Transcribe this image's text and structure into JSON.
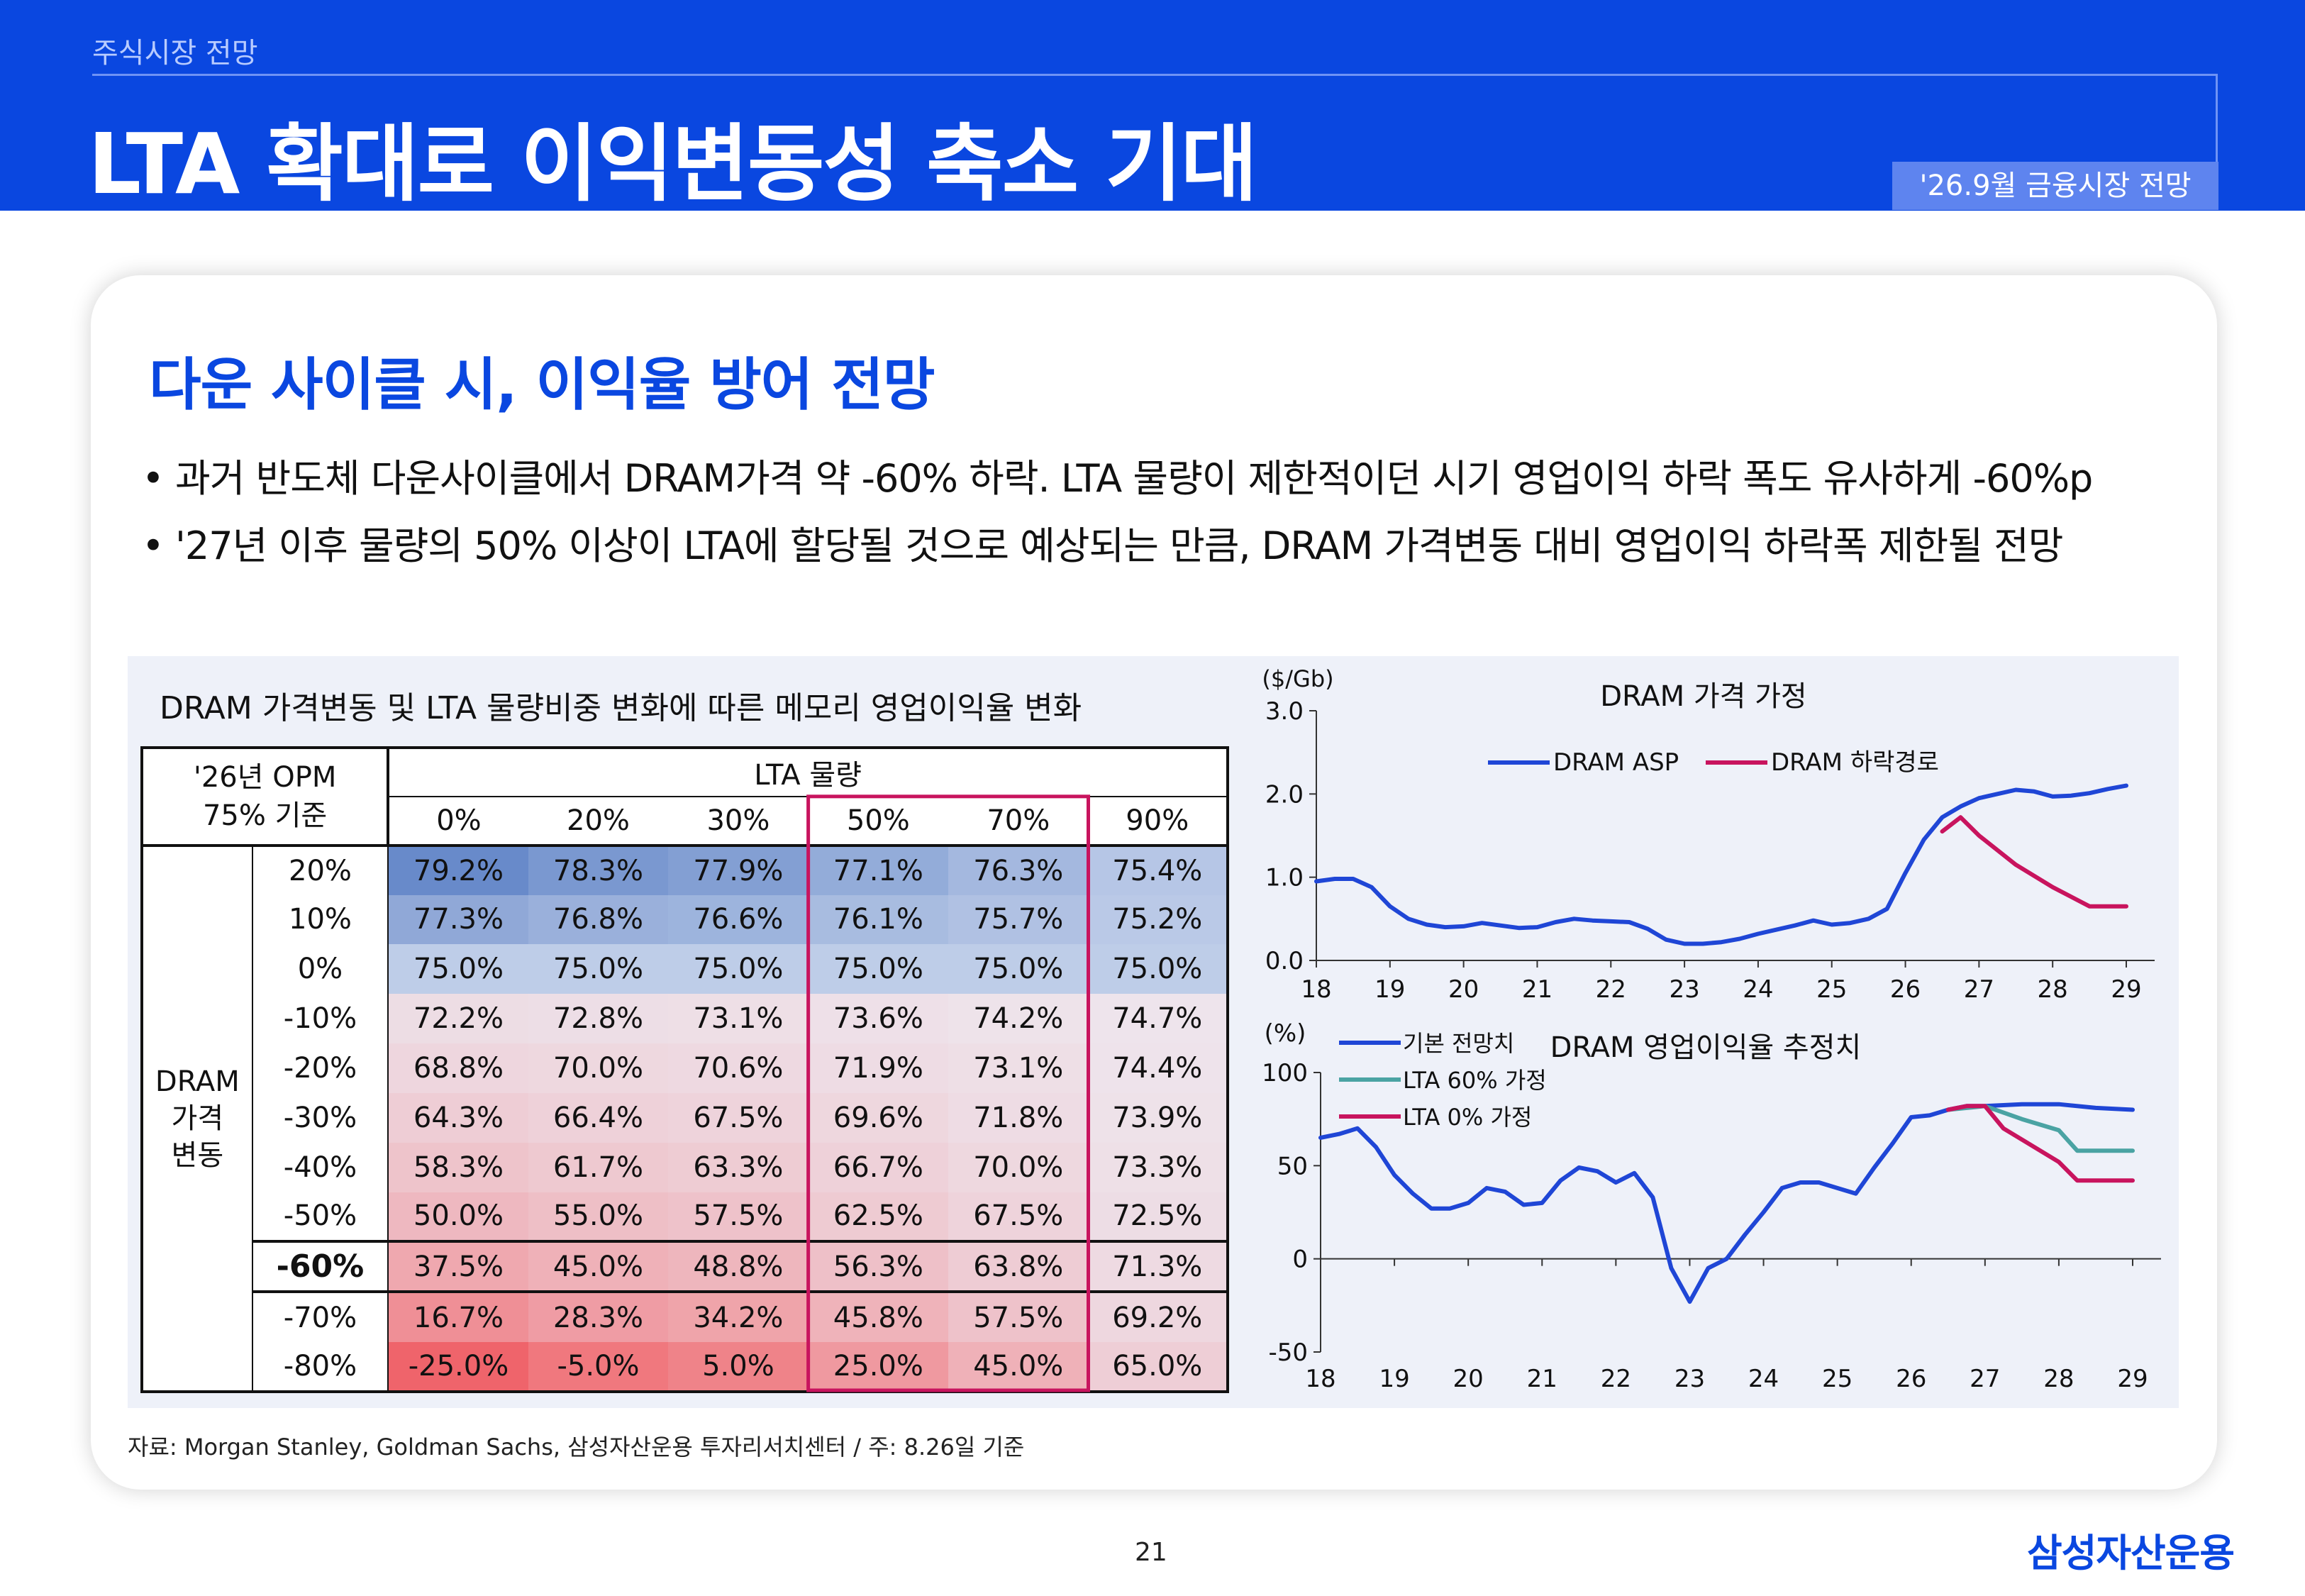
{
  "header": {
    "subtitle": "주식시장 전망",
    "title": "LTA 확대로 이익변동성 축소 기대",
    "badge": "'26.9월 금융시장 전망"
  },
  "section": {
    "title": "다운 사이클 시, 이익율 방어 전망",
    "bullets": [
      "• 과거 반도체 다운사이클에서 DRAM가격 약 -60% 하락. LTA 물량이 제한적이던 시기 영업이익 하락 폭도 유사하게 -60%p",
      "• '27년 이후 물량의 50% 이상이 LTA에 할당될 것으로 예상되는 만큼, DRAM 가격변동 대비 영업이익 하락폭 제한될 전망"
    ]
  },
  "colors": {
    "brand": "#0a47e0",
    "highlight_box": "#c8145e",
    "asp_line": "#1f46d6",
    "decline_line": "#c8145e",
    "lta60_line": "#4aa3a3"
  },
  "table": {
    "title": "DRAM 가격변동 및 LTA 물량비중 변화에 따른 메모리 영업이익율 변화",
    "corner_line1": "'26년 OPM",
    "corner_line2": "75% 기준",
    "col_group": "LTA 물량",
    "row_group": [
      "DRAM",
      "가격",
      "변동"
    ],
    "columns": [
      "0%",
      "20%",
      "30%",
      "50%",
      "70%",
      "90%"
    ],
    "rows": [
      {
        "label": "20%",
        "values": [
          "79.2%",
          "78.3%",
          "77.9%",
          "77.1%",
          "76.3%",
          "75.4%"
        ]
      },
      {
        "label": "10%",
        "values": [
          "77.3%",
          "76.8%",
          "76.6%",
          "76.1%",
          "75.7%",
          "75.2%"
        ]
      },
      {
        "label": "0%",
        "values": [
          "75.0%",
          "75.0%",
          "75.0%",
          "75.0%",
          "75.0%",
          "75.0%"
        ]
      },
      {
        "label": "-10%",
        "values": [
          "72.2%",
          "72.8%",
          "73.1%",
          "73.6%",
          "74.2%",
          "74.7%"
        ]
      },
      {
        "label": "-20%",
        "values": [
          "68.8%",
          "70.0%",
          "70.6%",
          "71.9%",
          "73.1%",
          "74.4%"
        ]
      },
      {
        "label": "-30%",
        "values": [
          "64.3%",
          "66.4%",
          "67.5%",
          "69.6%",
          "71.8%",
          "73.9%"
        ]
      },
      {
        "label": "-40%",
        "values": [
          "58.3%",
          "61.7%",
          "63.3%",
          "66.7%",
          "70.0%",
          "73.3%"
        ]
      },
      {
        "label": "-50%",
        "values": [
          "50.0%",
          "55.0%",
          "57.5%",
          "62.5%",
          "67.5%",
          "72.5%"
        ]
      },
      {
        "label": "-60%",
        "values": [
          "37.5%",
          "45.0%",
          "48.8%",
          "56.3%",
          "63.8%",
          "71.3%"
        ]
      },
      {
        "label": "-70%",
        "values": [
          "16.7%",
          "28.3%",
          "34.2%",
          "45.8%",
          "57.5%",
          "69.2%"
        ]
      },
      {
        "label": "-80%",
        "values": [
          "-25.0%",
          "-5.0%",
          "5.0%",
          "25.0%",
          "45.0%",
          "65.0%"
        ]
      }
    ]
  },
  "chart_data": [
    {
      "type": "heatmap",
      "title": "DRAM 가격변동 및 LTA 물량비중 변화에 따른 메모리 영업이익율 변화",
      "x_label": "LTA 물량",
      "y_label": "DRAM 가격 변동",
      "x": [
        "0%",
        "20%",
        "30%",
        "50%",
        "70%",
        "90%"
      ],
      "y": [
        "20%",
        "10%",
        "0%",
        "-10%",
        "-20%",
        "-30%",
        "-40%",
        "-50%",
        "-60%",
        "-70%",
        "-80%"
      ],
      "values": [
        [
          79.2,
          78.3,
          77.9,
          77.1,
          76.3,
          75.4
        ],
        [
          77.3,
          76.8,
          76.6,
          76.1,
          75.7,
          75.2
        ],
        [
          75.0,
          75.0,
          75.0,
          75.0,
          75.0,
          75.0
        ],
        [
          72.2,
          72.8,
          73.1,
          73.6,
          74.2,
          74.7
        ],
        [
          68.8,
          70.0,
          70.6,
          71.9,
          73.1,
          74.4
        ],
        [
          64.3,
          66.4,
          67.5,
          69.6,
          71.8,
          73.9
        ],
        [
          58.3,
          61.7,
          63.3,
          66.7,
          70.0,
          73.3
        ],
        [
          50.0,
          55.0,
          57.5,
          62.5,
          67.5,
          72.5
        ],
        [
          37.5,
          45.0,
          48.8,
          56.3,
          63.8,
          71.3
        ],
        [
          16.7,
          28.3,
          34.2,
          45.8,
          57.5,
          69.2
        ],
        [
          -25.0,
          -5.0,
          5.0,
          25.0,
          45.0,
          65.0
        ]
      ],
      "center_value": 75.0,
      "highlight_columns": [
        "50%",
        "70%"
      ],
      "highlight_row": "-60%"
    },
    {
      "type": "line",
      "title": "DRAM 가격 가정",
      "unit_label": "($/Gb)",
      "ylim": [
        0,
        3.0
      ],
      "yticks": [
        "0.0",
        "1.0",
        "2.0",
        "3.0"
      ],
      "xlim": [
        18,
        29
      ],
      "xticks": [
        "18",
        "19",
        "20",
        "21",
        "22",
        "23",
        "24",
        "25",
        "26",
        "27",
        "28",
        "29"
      ],
      "legend_position": "top",
      "series": [
        {
          "name": "DRAM ASP",
          "color": "#1f46d6",
          "x": [
            18,
            18.25,
            18.5,
            18.75,
            19,
            19.25,
            19.5,
            19.75,
            20,
            20.25,
            20.5,
            20.75,
            21,
            21.25,
            21.5,
            21.75,
            22,
            22.25,
            22.5,
            22.75,
            23,
            23.25,
            23.5,
            23.75,
            24,
            24.25,
            24.5,
            24.75,
            25,
            25.25,
            25.5,
            25.75,
            26,
            26.25,
            26.5,
            26.75,
            27,
            27.25,
            27.5,
            27.75,
            28,
            28.25,
            28.5,
            28.75,
            29
          ],
          "y": [
            0.95,
            0.98,
            0.98,
            0.88,
            0.65,
            0.5,
            0.43,
            0.4,
            0.41,
            0.45,
            0.42,
            0.39,
            0.4,
            0.46,
            0.5,
            0.48,
            0.47,
            0.46,
            0.38,
            0.25,
            0.2,
            0.2,
            0.22,
            0.26,
            0.32,
            0.37,
            0.42,
            0.48,
            0.43,
            0.45,
            0.5,
            0.62,
            1.05,
            1.45,
            1.72,
            1.85,
            1.95,
            2.0,
            2.05,
            2.03,
            1.97,
            1.98,
            2.01,
            2.06,
            2.1
          ]
        },
        {
          "name": "DRAM 하락경로",
          "color": "#c8145e",
          "x": [
            26.5,
            26.75,
            27,
            27.5,
            28,
            28.5,
            29
          ],
          "y": [
            1.55,
            1.72,
            1.5,
            1.15,
            0.88,
            0.65,
            0.65
          ]
        }
      ]
    },
    {
      "type": "line",
      "title": "DRAM 영업이익율 추정치",
      "unit_label": "(%)",
      "ylim": [
        -50,
        100
      ],
      "yticks": [
        "-50",
        "0",
        "50",
        "100"
      ],
      "xlim": [
        18,
        29
      ],
      "xticks": [
        "18",
        "19",
        "20",
        "21",
        "22",
        "23",
        "24",
        "25",
        "26",
        "27",
        "28",
        "29"
      ],
      "legend_position": "top-left",
      "series": [
        {
          "name": "기본 전망치",
          "color": "#1f46d6",
          "x": [
            18,
            18.25,
            18.5,
            18.75,
            19,
            19.25,
            19.5,
            19.75,
            20,
            20.25,
            20.5,
            20.75,
            21,
            21.25,
            21.5,
            21.75,
            22,
            22.25,
            22.5,
            22.75,
            23,
            23.25,
            23.5,
            23.75,
            24,
            24.25,
            24.5,
            24.75,
            25,
            25.25,
            25.5,
            25.75,
            26,
            26.25,
            26.5,
            26.75,
            27,
            27.5,
            28,
            28.5,
            29
          ],
          "y": [
            65,
            67,
            70,
            60,
            45,
            35,
            27,
            27,
            30,
            38,
            36,
            29,
            30,
            42,
            49,
            47,
            41,
            46,
            33,
            -5,
            -23,
            -5,
            0,
            13,
            25,
            38,
            41,
            41,
            38,
            35,
            49,
            62,
            76,
            77,
            80,
            82,
            82,
            83,
            83,
            81,
            80
          ]
        },
        {
          "name": "LTA 60% 가정",
          "color": "#4aa3a3",
          "x": [
            26.5,
            27,
            27.5,
            28,
            28.25,
            28.5,
            29
          ],
          "y": [
            80,
            82,
            75,
            69,
            58,
            58,
            58
          ]
        },
        {
          "name": "LTA 0% 가정",
          "color": "#c8145e",
          "x": [
            26.5,
            26.75,
            27,
            27.25,
            27.5,
            28,
            28.25,
            28.5,
            29
          ],
          "y": [
            80,
            82,
            82,
            70,
            64,
            52,
            42,
            42,
            42
          ]
        }
      ]
    }
  ],
  "source": "자료: Morgan Stanley, Goldman Sachs, 삼성자산운용 투자리서치센터 / 주: 8.26일 기준",
  "page_number": "21",
  "logo": "삼성자산운용"
}
